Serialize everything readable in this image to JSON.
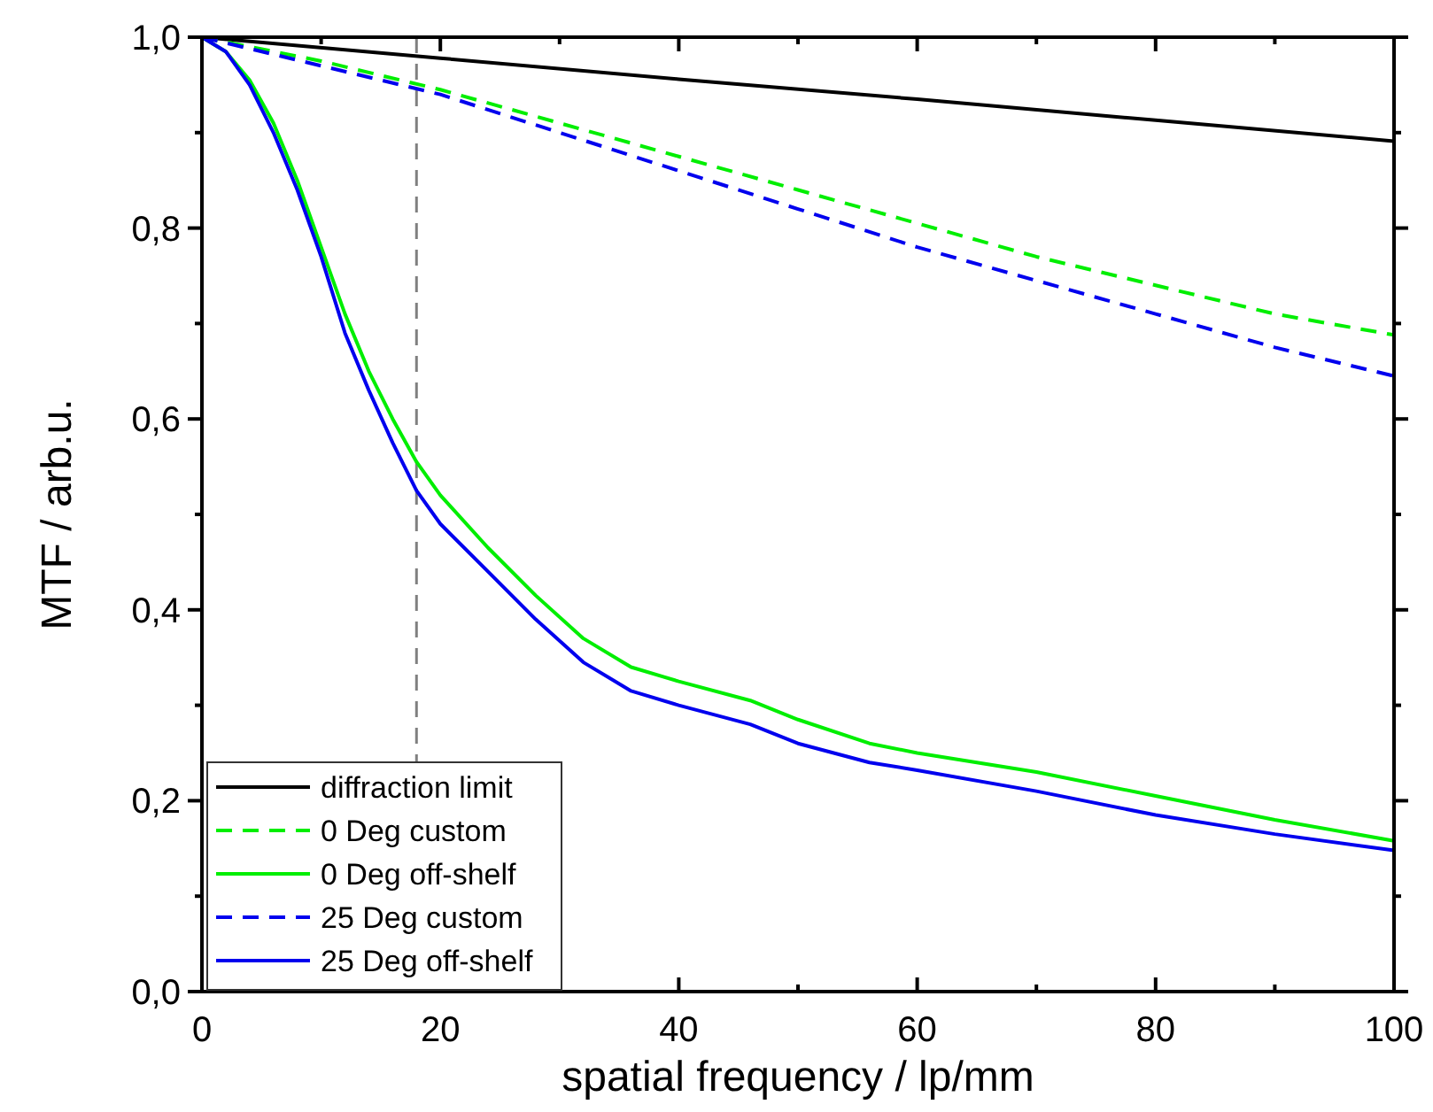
{
  "chart_data": {
    "type": "line",
    "xlabel": "spatial frequency / lp/mm",
    "ylabel": "MTF / arb.u.",
    "xlim": [
      0,
      100
    ],
    "ylim": [
      0,
      1
    ],
    "xticks": [
      0,
      {
        "value": 10,
        "label": null
      },
      20,
      {
        "value": 30,
        "label": null
      },
      40,
      {
        "value": 50,
        "label": null
      },
      60,
      {
        "value": 70,
        "label": null
      },
      80,
      {
        "value": 90,
        "label": null
      },
      100
    ],
    "yticks": [
      {
        "value": 0,
        "label": "0,0"
      },
      {
        "value": 0.1,
        "label": null
      },
      {
        "value": 0.2,
        "label": "0,2"
      },
      {
        "value": 0.3,
        "label": null
      },
      {
        "value": 0.4,
        "label": "0,4"
      },
      {
        "value": 0.5,
        "label": null
      },
      {
        "value": 0.6,
        "label": "0,6"
      },
      {
        "value": 0.7,
        "label": null
      },
      {
        "value": 0.8,
        "label": "0,8"
      },
      {
        "value": 0.9,
        "label": null
      },
      {
        "value": 1,
        "label": "1,0"
      }
    ],
    "grid": false,
    "legend": "bottom left",
    "ref_lines": [
      {
        "axis": "x",
        "value": 18,
        "color": "#808080",
        "line_style": "dashed"
      }
    ],
    "series": [
      {
        "name": "diffraction limit",
        "color": "#000000",
        "line_style": "solid",
        "x": [
          0,
          20,
          40,
          60,
          80,
          100
        ],
        "values": [
          1,
          0.978,
          0.956,
          0.935,
          0.913,
          0.891
        ]
      },
      {
        "name": "0 Deg custom",
        "color": "#00ee00",
        "line_style": "dashed",
        "x": [
          0,
          10,
          20,
          30,
          40,
          50,
          60,
          70,
          80,
          90,
          100
        ],
        "values": [
          1,
          0.975,
          0.945,
          0.91,
          0.875,
          0.84,
          0.805,
          0.77,
          0.74,
          0.71,
          0.688
        ]
      },
      {
        "name": "0 Deg off-shelf",
        "color": "#00ee00",
        "line_style": "solid",
        "x": [
          0,
          2,
          4,
          6,
          8,
          10,
          12,
          14,
          16,
          18,
          20,
          24,
          28,
          32,
          36,
          40,
          46,
          50,
          56,
          60,
          70,
          80,
          90,
          100
        ],
        "values": [
          1,
          0.985,
          0.955,
          0.91,
          0.85,
          0.78,
          0.71,
          0.65,
          0.6,
          0.555,
          0.52,
          0.465,
          0.415,
          0.37,
          0.34,
          0.325,
          0.305,
          0.285,
          0.26,
          0.25,
          0.23,
          0.205,
          0.18,
          0.158
        ]
      },
      {
        "name": "25 Deg custom",
        "color": "#0000ee",
        "line_style": "dashed",
        "x": [
          0,
          10,
          20,
          30,
          40,
          50,
          60,
          70,
          80,
          90,
          100
        ],
        "values": [
          1,
          0.97,
          0.94,
          0.9,
          0.86,
          0.82,
          0.78,
          0.745,
          0.71,
          0.675,
          0.645
        ]
      },
      {
        "name": "25 Deg off-shelf",
        "color": "#0000ee",
        "line_style": "solid",
        "x": [
          0,
          2,
          4,
          6,
          8,
          10,
          12,
          14,
          16,
          18,
          20,
          24,
          28,
          32,
          36,
          40,
          46,
          50,
          56,
          60,
          70,
          80,
          90,
          100
        ],
        "values": [
          1,
          0.985,
          0.95,
          0.9,
          0.84,
          0.77,
          0.69,
          0.63,
          0.575,
          0.525,
          0.49,
          0.44,
          0.39,
          0.345,
          0.315,
          0.3,
          0.28,
          0.26,
          0.24,
          0.232,
          0.21,
          0.185,
          0.165,
          0.148
        ]
      }
    ]
  }
}
